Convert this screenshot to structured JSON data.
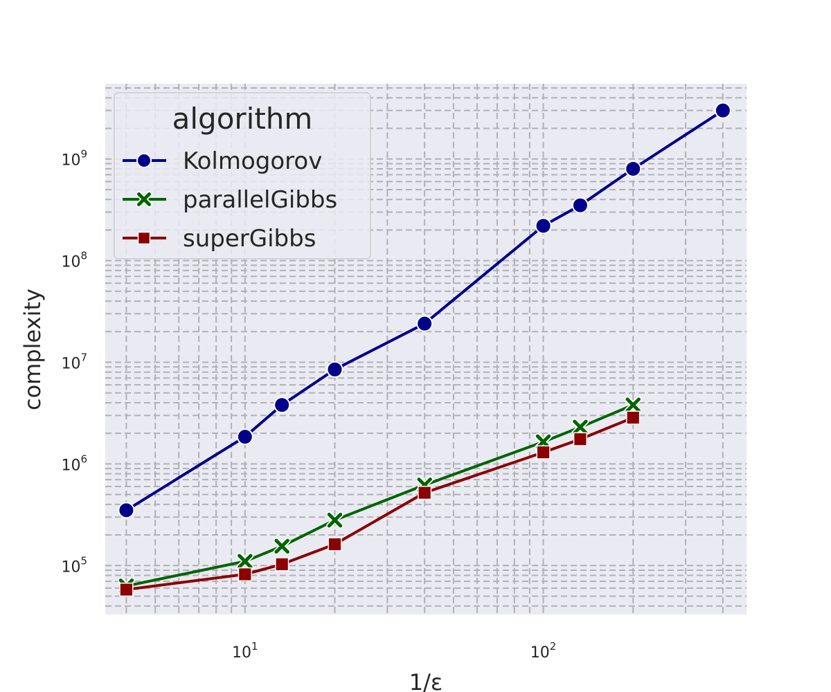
{
  "chart_data": {
    "type": "line",
    "xlabel": "1/ε",
    "ylabel": "complexity",
    "x_scale": "log",
    "y_scale": "log",
    "xlim": [
      3.4,
      480
    ],
    "ylim": [
      33000,
      5500000000
    ],
    "grid": true,
    "grid_style": "dashed, major and minor",
    "background": "#eaeaf2",
    "x_ticks": [
      {
        "base": "10",
        "exp": "1",
        "value": 10
      },
      {
        "base": "10",
        "exp": "2",
        "value": 100
      }
    ],
    "y_ticks": [
      {
        "base": "10",
        "exp": "5",
        "value": 100000
      },
      {
        "base": "10",
        "exp": "6",
        "value": 1000000
      },
      {
        "base": "10",
        "exp": "7",
        "value": 10000000
      },
      {
        "base": "10",
        "exp": "8",
        "value": 100000000
      },
      {
        "base": "10",
        "exp": "9",
        "value": 1000000000
      }
    ],
    "legend": {
      "title": "algorithm",
      "position": "upper-left"
    },
    "series": [
      {
        "name": "Kolmogorov",
        "color": "#00008b",
        "marker": "circle",
        "x": [
          4,
          10,
          13.3,
          20,
          40,
          100,
          133,
          200,
          400
        ],
        "y": [
          350000,
          1850000,
          3800000,
          8500000,
          24000000,
          220000000,
          350000000,
          800000000,
          3000000000
        ]
      },
      {
        "name": "parallelGibbs",
        "color": "#006400",
        "marker": "x",
        "x": [
          4,
          10,
          13.3,
          20,
          40,
          100,
          133,
          200
        ],
        "y": [
          63000,
          110000,
          155000,
          280000,
          620000,
          1650000,
          2300000,
          3800000
        ]
      },
      {
        "name": "superGibbs",
        "color": "#8b0000",
        "marker": "square",
        "x": [
          4,
          10,
          13.3,
          20,
          40,
          100,
          133,
          200
        ],
        "y": [
          58000,
          82000,
          103000,
          162000,
          520000,
          1300000,
          1750000,
          2850000
        ]
      }
    ]
  }
}
